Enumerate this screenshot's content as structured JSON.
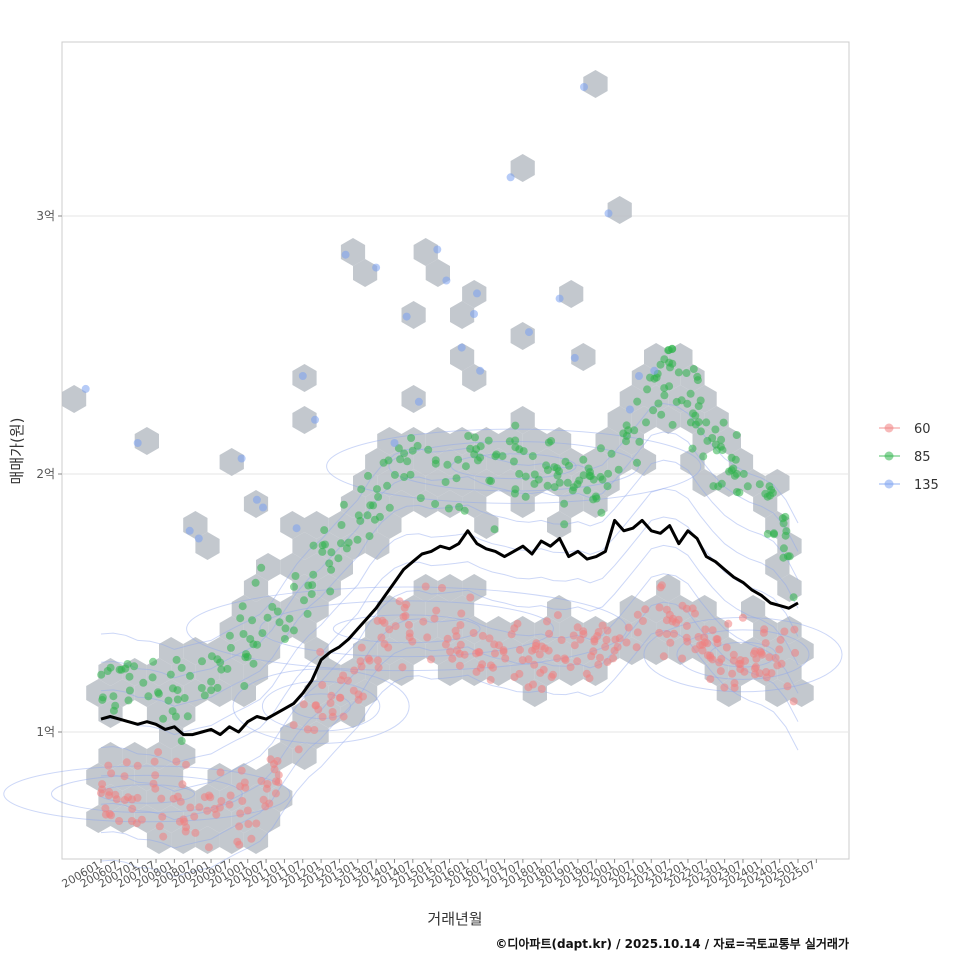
{
  "chart_data": {
    "type": "scatter",
    "title": "",
    "xlabel": "거래년월",
    "ylabel": "매매가(원)",
    "caption": "©디아파트(dapt.kr) / 2025.10.14 / 자료=국토교통부 실거래가",
    "x_tick_labels": [
      "200601",
      "200607",
      "200701",
      "200707",
      "200801",
      "200807",
      "200901",
      "200907",
      "201001",
      "201007",
      "201101",
      "201107",
      "201201",
      "201207",
      "201301",
      "201307",
      "201401",
      "201407",
      "201501",
      "201507",
      "201601",
      "201607",
      "201701",
      "201707",
      "201801",
      "201807",
      "201901",
      "201907",
      "202001",
      "202007",
      "202101",
      "202107",
      "202201",
      "202207",
      "202301",
      "202307",
      "202401",
      "202407",
      "202501",
      "202507"
    ],
    "y_ticks": [
      {
        "value": 1.0,
        "label": "1억"
      },
      {
        "value": 2.0,
        "label": "2억"
      },
      {
        "value": 3.0,
        "label": "3억"
      }
    ],
    "ylim": [
      0.48,
      3.66
    ],
    "xlim_months": [
      -13,
      240
    ],
    "unit": "억원",
    "legend": {
      "title": "",
      "position": "right",
      "entries": [
        {
          "name": "60",
          "color": "#f08080"
        },
        {
          "name": "85",
          "color": "#2db34a"
        },
        {
          "name": "135",
          "color": "#7aa0f0"
        }
      ]
    },
    "colors": {
      "hex": "#b9bec6",
      "contour": "#8ea6ee",
      "trend": "#000000",
      "grid": "#e6e6e6",
      "panel_border": "#cccccc"
    },
    "series": [
      {
        "name": "60",
        "description": "area ≤60㎡ trades",
        "anchors": [
          [
            0,
            0.77
          ],
          [
            6,
            0.76
          ],
          [
            12,
            0.76
          ],
          [
            18,
            0.78
          ],
          [
            24,
            0.73
          ],
          [
            30,
            0.73
          ],
          [
            36,
            0.72
          ],
          [
            42,
            0.74
          ],
          [
            48,
            0.75
          ],
          [
            54,
            0.77
          ],
          [
            60,
            0.92
          ],
          [
            66,
            1.05
          ],
          [
            72,
            1.08
          ],
          [
            78,
            1.14
          ],
          [
            84,
            1.2
          ],
          [
            90,
            1.34
          ],
          [
            96,
            1.4
          ],
          [
            102,
            1.42
          ],
          [
            108,
            1.36
          ],
          [
            114,
            1.35
          ],
          [
            120,
            1.38
          ],
          [
            126,
            1.33
          ],
          [
            132,
            1.29
          ],
          [
            138,
            1.27
          ],
          [
            144,
            1.3
          ],
          [
            150,
            1.28
          ],
          [
            156,
            1.33
          ],
          [
            162,
            1.3
          ],
          [
            168,
            1.35
          ],
          [
            174,
            1.42
          ],
          [
            180,
            1.45
          ],
          [
            186,
            1.43
          ],
          [
            192,
            1.4
          ],
          [
            198,
            1.35
          ],
          [
            204,
            1.3
          ],
          [
            210,
            1.27
          ],
          [
            216,
            1.28
          ],
          [
            222,
            1.27
          ],
          [
            228,
            1.25
          ]
        ],
        "spread": 0.07,
        "count": 330
      },
      {
        "name": "85",
        "description": "60~85㎡ trades",
        "anchors": [
          [
            0,
            1.22
          ],
          [
            6,
            1.24
          ],
          [
            12,
            1.18
          ],
          [
            18,
            1.15
          ],
          [
            24,
            1.14
          ],
          [
            30,
            1.18
          ],
          [
            36,
            1.22
          ],
          [
            42,
            1.28
          ],
          [
            48,
            1.34
          ],
          [
            54,
            1.4
          ],
          [
            60,
            1.47
          ],
          [
            66,
            1.55
          ],
          [
            72,
            1.64
          ],
          [
            78,
            1.74
          ],
          [
            84,
            1.83
          ],
          [
            90,
            1.92
          ],
          [
            96,
            1.98
          ],
          [
            102,
            2.02
          ],
          [
            108,
            2.04
          ],
          [
            114,
            2.06
          ],
          [
            120,
            2.05
          ],
          [
            126,
            2.03
          ],
          [
            132,
            2.04
          ],
          [
            138,
            2.02
          ],
          [
            144,
            2.01
          ],
          [
            150,
            1.99
          ],
          [
            156,
            1.97
          ],
          [
            162,
            1.95
          ],
          [
            168,
            2.05
          ],
          [
            174,
            2.15
          ],
          [
            180,
            2.3
          ],
          [
            186,
            2.36
          ],
          [
            192,
            2.3
          ],
          [
            198,
            2.15
          ],
          [
            204,
            2.05
          ],
          [
            210,
            1.98
          ],
          [
            216,
            1.92
          ],
          [
            222,
            1.85
          ],
          [
            228,
            1.6
          ]
        ],
        "spread": 0.08,
        "count": 300
      },
      {
        "name": "135",
        "description": "85~135㎡ trades",
        "points": [
          [
            -5,
            2.33
          ],
          [
            12,
            2.12
          ],
          [
            29,
            1.78
          ],
          [
            32,
            1.75
          ],
          [
            46,
            2.06
          ],
          [
            51,
            1.9
          ],
          [
            53,
            1.87
          ],
          [
            66,
            2.38
          ],
          [
            70,
            2.21
          ],
          [
            80,
            2.85
          ],
          [
            90,
            2.8
          ],
          [
            100,
            2.61
          ],
          [
            104,
            2.28
          ],
          [
            110,
            2.87
          ],
          [
            113,
            2.75
          ],
          [
            118,
            2.49
          ],
          [
            122,
            2.62
          ],
          [
            123,
            2.7
          ],
          [
            134,
            3.15
          ],
          [
            150,
            2.68
          ],
          [
            155,
            2.45
          ],
          [
            158,
            3.5
          ],
          [
            166,
            3.01
          ],
          [
            173,
            2.25
          ],
          [
            181,
            2.4
          ],
          [
            64,
            1.79
          ],
          [
            96,
            2.12
          ],
          [
            124,
            2.4
          ],
          [
            140,
            2.55
          ],
          [
            176,
            2.38
          ]
        ],
        "count": 30
      },
      {
        "name": "trend",
        "description": "rolling average price (black line)",
        "values": [
          [
            0,
            1.05
          ],
          [
            3,
            1.06
          ],
          [
            6,
            1.05
          ],
          [
            9,
            1.04
          ],
          [
            12,
            1.03
          ],
          [
            15,
            1.04
          ],
          [
            18,
            1.03
          ],
          [
            21,
            1.01
          ],
          [
            24,
            1.02
          ],
          [
            27,
            0.99
          ],
          [
            30,
            0.99
          ],
          [
            33,
            1.0
          ],
          [
            36,
            1.01
          ],
          [
            39,
            0.99
          ],
          [
            42,
            1.02
          ],
          [
            45,
            1.0
          ],
          [
            48,
            1.04
          ],
          [
            51,
            1.06
          ],
          [
            54,
            1.05
          ],
          [
            57,
            1.07
          ],
          [
            60,
            1.09
          ],
          [
            63,
            1.11
          ],
          [
            66,
            1.15
          ],
          [
            69,
            1.2
          ],
          [
            72,
            1.28
          ],
          [
            75,
            1.31
          ],
          [
            78,
            1.33
          ],
          [
            81,
            1.36
          ],
          [
            84,
            1.4
          ],
          [
            87,
            1.44
          ],
          [
            90,
            1.48
          ],
          [
            93,
            1.53
          ],
          [
            96,
            1.58
          ],
          [
            99,
            1.63
          ],
          [
            102,
            1.66
          ],
          [
            105,
            1.69
          ],
          [
            108,
            1.7
          ],
          [
            111,
            1.72
          ],
          [
            114,
            1.71
          ],
          [
            117,
            1.73
          ],
          [
            120,
            1.78
          ],
          [
            123,
            1.73
          ],
          [
            126,
            1.71
          ],
          [
            129,
            1.7
          ],
          [
            132,
            1.68
          ],
          [
            135,
            1.7
          ],
          [
            138,
            1.72
          ],
          [
            141,
            1.69
          ],
          [
            144,
            1.74
          ],
          [
            147,
            1.72
          ],
          [
            150,
            1.75
          ],
          [
            153,
            1.68
          ],
          [
            156,
            1.7
          ],
          [
            159,
            1.67
          ],
          [
            162,
            1.68
          ],
          [
            165,
            1.7
          ],
          [
            168,
            1.82
          ],
          [
            171,
            1.78
          ],
          [
            174,
            1.79
          ],
          [
            177,
            1.82
          ],
          [
            180,
            1.78
          ],
          [
            183,
            1.77
          ],
          [
            186,
            1.8
          ],
          [
            189,
            1.73
          ],
          [
            192,
            1.78
          ],
          [
            195,
            1.75
          ],
          [
            198,
            1.68
          ],
          [
            201,
            1.66
          ],
          [
            204,
            1.63
          ],
          [
            207,
            1.6
          ],
          [
            210,
            1.58
          ],
          [
            213,
            1.55
          ],
          [
            216,
            1.53
          ],
          [
            219,
            1.5
          ],
          [
            222,
            1.49
          ],
          [
            225,
            1.48
          ],
          [
            228,
            1.5
          ]
        ]
      }
    ]
  }
}
